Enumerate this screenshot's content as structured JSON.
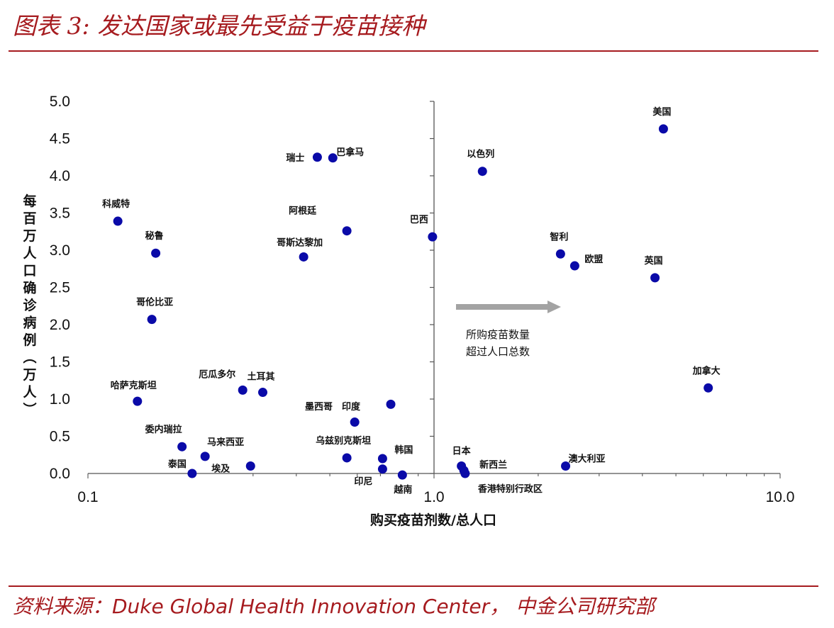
{
  "title": "图表 3: 发达国家或最先受益于疫苗接种",
  "source": "资料来源：Duke Global Health Innovation Center， 中金公司研究部",
  "colors": {
    "accent": "#a61b1f",
    "point": "#0a0aa8",
    "arrow": "#a3a3a3"
  },
  "chart_data": {
    "type": "scatter",
    "xscale": "log",
    "xlim": [
      0.1,
      10
    ],
    "ylim": [
      0,
      5
    ],
    "xlabel": "购买疫苗剂数/总人口",
    "ylabel": "每百万人口确诊病例（万人）",
    "xticks": [
      {
        "v": 0.1,
        "label": "0.1"
      },
      {
        "v": 1,
        "label": "1.0"
      },
      {
        "v": 10,
        "label": "10.0"
      }
    ],
    "yticks": [
      {
        "v": 0,
        "label": "0.0"
      },
      {
        "v": 0.5,
        "label": "0.5"
      },
      {
        "v": 1,
        "label": "1.0"
      },
      {
        "v": 1.5,
        "label": "1.5"
      },
      {
        "v": 2,
        "label": "2.0"
      },
      {
        "v": 2.5,
        "label": "2.5"
      },
      {
        "v": 3,
        "label": "3.0"
      },
      {
        "v": 3.5,
        "label": "3.5"
      },
      {
        "v": 4,
        "label": "4.0"
      },
      {
        "v": 4.5,
        "label": "4.5"
      },
      {
        "v": 5,
        "label": "5.0"
      }
    ],
    "points": [
      {
        "label": "美国",
        "x": 4.6,
        "y": 4.63
      },
      {
        "label": "瑞士",
        "x": 0.46,
        "y": 4.25
      },
      {
        "label": "巴拿马",
        "x": 0.51,
        "y": 4.24
      },
      {
        "label": "以色列",
        "x": 1.38,
        "y": 4.06
      },
      {
        "label": "科威特",
        "x": 0.122,
        "y": 3.39
      },
      {
        "label": "阿根廷",
        "x": 0.56,
        "y": 3.26
      },
      {
        "label": "巴西",
        "x": 0.99,
        "y": 3.18
      },
      {
        "label": "秘鲁",
        "x": 0.157,
        "y": 2.96
      },
      {
        "label": "哥斯达黎加",
        "x": 0.42,
        "y": 2.91
      },
      {
        "label": "智利",
        "x": 2.32,
        "y": 2.95
      },
      {
        "label": "欧盟",
        "x": 2.55,
        "y": 2.79
      },
      {
        "label": "英国",
        "x": 4.35,
        "y": 2.63
      },
      {
        "label": "哥伦比亚",
        "x": 0.153,
        "y": 2.07
      },
      {
        "label": "加拿大",
        "x": 6.2,
        "y": 1.15
      },
      {
        "label": "哈萨克斯坦",
        "x": 0.139,
        "y": 0.97
      },
      {
        "label": "厄瓜多尔",
        "x": 0.28,
        "y": 1.12
      },
      {
        "label": "土耳其",
        "x": 0.32,
        "y": 1.09
      },
      {
        "label": "墨西哥",
        "x": 0.75,
        "y": 0.93
      },
      {
        "label": "印度",
        "x": 0.59,
        "y": 0.69
      },
      {
        "label": "委内瑞拉",
        "x": 0.187,
        "y": 0.36
      },
      {
        "label": "马来西亚",
        "x": 0.218,
        "y": 0.23
      },
      {
        "label": "乌兹别克斯坦",
        "x": 0.56,
        "y": 0.21
      },
      {
        "label": "韩国",
        "x": 0.71,
        "y": 0.2
      },
      {
        "label": "泰国",
        "x": 0.2,
        "y": 0.0
      },
      {
        "label": "埃及",
        "x": 0.295,
        "y": 0.1
      },
      {
        "label": "印尼",
        "x": 0.71,
        "y": 0.06
      },
      {
        "label": "越南",
        "x": 0.81,
        "y": -0.02
      },
      {
        "label": "日本",
        "x": 1.2,
        "y": 0.1
      },
      {
        "label": "新西兰",
        "x": 1.22,
        "y": 0.04
      },
      {
        "label": "香港特别行政区",
        "x": 1.23,
        "y": 0.0
      },
      {
        "label": "澳大利亚",
        "x": 2.4,
        "y": 0.1
      }
    ],
    "annotation": "所购疫苗数量超过人口总数"
  }
}
